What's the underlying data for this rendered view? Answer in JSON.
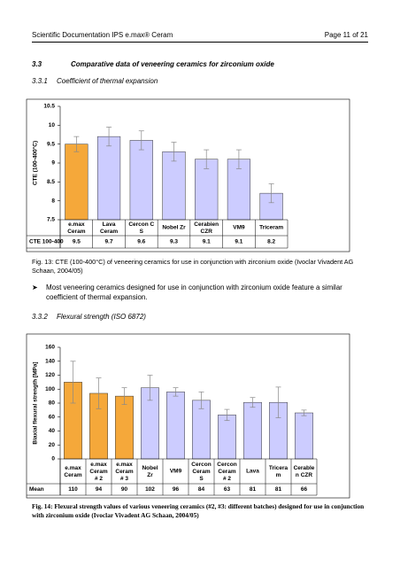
{
  "header": {
    "title": "Scientific Documentation IPS e.max® Ceram",
    "page": "Page 11 of 21"
  },
  "section": {
    "number": "3.3",
    "title": "Comparative data of veneering ceramics for zirconium oxide"
  },
  "subsection_1": {
    "number": "3.3.1",
    "title": "Coefficient of thermal expansion"
  },
  "subsection_2": {
    "number": "3.3.2",
    "title": "Flexural strength (ISO 6872)"
  },
  "captions": [
    "Fig. 13: CTE (100-400°C) of veneering ceramics for use in conjunction with zirconium oxide (Ivoclar Vivadent AG Schaan, 2004/05)",
    "Fig. 14: Flexural strength values of various veneering ceramics (#2, #3: different batches) designed for use in conjunction with zirconium oxide (Ivoclar Vivadent AG Schaan, 2004/05)"
  ],
  "bullet": "Most veneering ceramics designed for use in conjunction with zirconium oxide feature a similar coefficient of thermal expansion.",
  "chart_data": [
    {
      "type": "bar",
      "y_label": "CTE (100-400°C)",
      "row_label": "CTE 100-400",
      "categories": [
        "e.max\nCeram",
        "Lava\nCeram",
        "Cercon C\nS",
        "Nobel Zr",
        "Cerabien\nCZR",
        "VM9",
        "Triceram"
      ],
      "values": [
        9.5,
        9.7,
        9.6,
        9.3,
        9.1,
        9.1,
        8.2
      ],
      "errors": [
        0.2,
        0.25,
        0.25,
        0.25,
        0.25,
        0.25,
        0.25
      ],
      "colors": [
        "#f5a83a",
        "#ccccff",
        "#ccccff",
        "#ccccff",
        "#ccccff",
        "#ccccff",
        "#ccccff"
      ],
      "ylim": [
        7.5,
        10.5
      ],
      "yticks": [
        7.5,
        8,
        8.5,
        9,
        9.5,
        10,
        10.5
      ]
    },
    {
      "type": "bar",
      "y_label": "Biaxial flexural strength [MPa]",
      "row_label": "Mean",
      "categories": [
        "e.max\nCeram",
        "e.max\nCeram\n# 2",
        "e.max\nCeram\n# 3",
        "Nobel\nZr",
        "VM9",
        "Cercon\nCeram\nS",
        "Cercon\nCeram\n# 2",
        "Lava",
        "Tricera\nm",
        "Cerable\nn CZR"
      ],
      "values": [
        110,
        94,
        90,
        102,
        96,
        84,
        63,
        81,
        81,
        66
      ],
      "errors": [
        30,
        22,
        12,
        18,
        6,
        12,
        8,
        7,
        22,
        4
      ],
      "colors": [
        "#f5a83a",
        "#f5a83a",
        "#f5a83a",
        "#ccccff",
        "#ccccff",
        "#ccccff",
        "#ccccff",
        "#ccccff",
        "#ccccff",
        "#ccccff"
      ],
      "ylim": [
        0,
        160
      ],
      "yticks": [
        0,
        20,
        40,
        60,
        80,
        100,
        120,
        140,
        160
      ]
    }
  ]
}
